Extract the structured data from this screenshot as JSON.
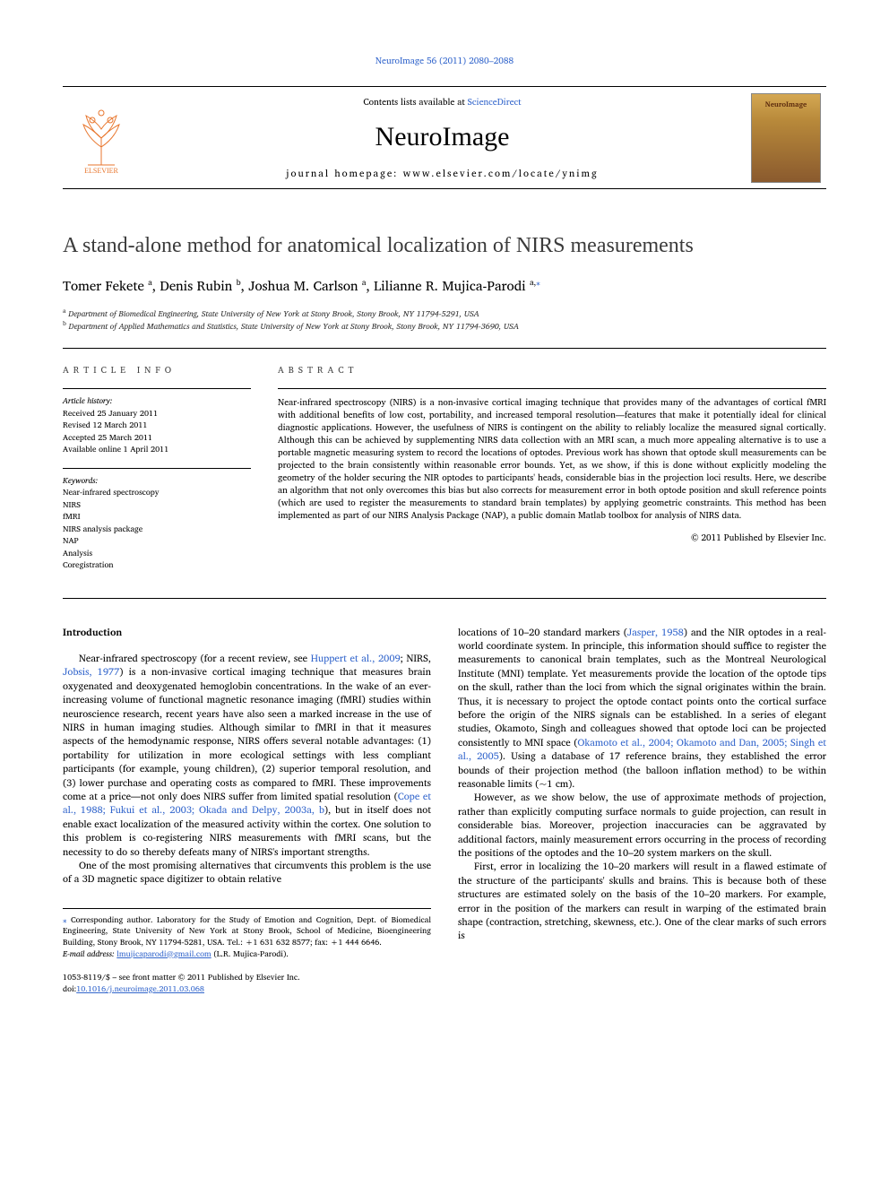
{
  "top_citation": "NeuroImage 56 (2011) 2080–2088",
  "masthead": {
    "contents_prefix": "Contents lists available at ",
    "contents_link": "ScienceDirect",
    "journal_title": "NeuroImage",
    "homepage": "journal homepage: www.elsevier.com/locate/ynimg",
    "cover_label": "NeuroImage"
  },
  "article": {
    "title": "A stand-alone method for anatomical localization of NIRS measurements",
    "authors_html": "Tomer Fekete <span class='sup'>a</span>, Denis Rubin <span class='sup'>b</span>, Joshua M. Carlson <span class='sup'>a</span>, Lilianne R. Mujica-Parodi <span class='sup'>a,</span><span class='sup star'>⁎</span>",
    "affiliations": [
      {
        "label": "a",
        "text": "Department of Biomedical Engineering, State University of New York at Stony Brook, Stony Brook, NY 11794-5291, USA"
      },
      {
        "label": "b",
        "text": "Department of Applied Mathematics and Statistics, State University of New York at Stony Brook, Stony Brook, NY 11794-3690, USA"
      }
    ]
  },
  "info": {
    "heading": "article info",
    "history_label": "Article history:",
    "history": [
      "Received 25 January 2011",
      "Revised 12 March 2011",
      "Accepted 25 March 2011",
      "Available online 1 April 2011"
    ],
    "keywords_label": "Keywords:",
    "keywords": [
      "Near-infrared spectroscopy",
      "NIRS",
      "fMRI",
      "NIRS analysis package",
      "NAP",
      "Analysis",
      "Coregistration"
    ]
  },
  "abstract": {
    "heading": "abstract",
    "text": "Near-infrared spectroscopy (NIRS) is a non-invasive cortical imaging technique that provides many of the advantages of cortical fMRI with additional benefits of low cost, portability, and increased temporal resolution—features that make it potentially ideal for clinical diagnostic applications. However, the usefulness of NIRS is contingent on the ability to reliably localize the measured signal cortically. Although this can be achieved by supplementing NIRS data collection with an MRI scan, a much more appealing alternative is to use a portable magnetic measuring system to record the locations of optodes. Previous work has shown that optode skull measurements can be projected to the brain consistently within reasonable error bounds. Yet, as we show, if this is done without explicitly modeling the geometry of the holder securing the NIR optodes to participants' heads, considerable bias in the projection loci results. Here, we describe an algorithm that not only overcomes this bias but also corrects for measurement error in both optode position and skull reference points (which are used to register the measurements to standard brain templates) by applying geometric constraints. This method has been implemented as part of our NIRS Analysis Package (NAP), a public domain Matlab toolbox for analysis of NIRS data.",
    "copyright": "© 2011 Published by Elsevier Inc."
  },
  "body": {
    "section_heading": "Introduction",
    "left_paragraphs": [
      "Near-infrared spectroscopy (for a recent review, see <span class='cite'>Huppert et al., 2009</span>; NIRS, <span class='cite'>Jobsis, 1977</span>) is a non-invasive cortical imaging technique that measures brain oxygenated and deoxygenated hemoglobin concentrations. In the wake of an ever-increasing volume of functional magnetic resonance imaging (fMRI) studies within neuroscience research, recent years have also seen a marked increase in the use of NIRS in human imaging studies. Although similar to fMRI in that it measures aspects of the hemodynamic response, NIRS offers several notable advantages: (1) portability for utilization in more ecological settings with less compliant participants (for example, young children), (2) superior temporal resolution, and (3) lower purchase and operating costs as compared to fMRI. These improvements come at a price—not only does NIRS suffer from limited spatial resolution (<span class='cite'>Cope et al., 1988; Fukui et al., 2003; Okada and Delpy, 2003a, b</span>), but in itself does not enable exact localization of the measured activity within the cortex. One solution to this problem is co-registering NIRS measurements with fMRI scans, but the necessity to do so thereby defeats many of NIRS's important strengths.",
      "One of the most promising alternatives that circumvents this problem is the use of a 3D magnetic space digitizer to obtain relative"
    ],
    "right_paragraphs": [
      "locations of 10–20 standard markers (<span class='cite'>Jasper, 1958</span>) and the NIR optodes in a real-world coordinate system. In principle, this information should suffice to register the measurements to canonical brain templates, such as the Montreal Neurological Institute (MNI) template. Yet measurements provide the location of the optode tips on the skull, rather than the loci from which the signal originates within the brain. Thus, it is necessary to project the optode contact points onto the cortical surface before the origin of the NIRS signals can be established. In a series of elegant studies, Okamoto, Singh and colleagues showed that optode loci can be projected consistently to MNI space (<span class='cite'>Okamoto et al., 2004; Okamoto and Dan, 2005; Singh et al., 2005</span>). Using a database of 17 reference brains, they established the error bounds of their projection method (the balloon inflation method) to be within reasonable limits (~1 cm).",
      "However, as we show below, the use of approximate methods of projection, rather than explicitly computing surface normals to guide projection, can result in considerable bias. Moreover, projection inaccuracies can be aggravated by additional factors, mainly measurement errors occurring in the process of recording the positions of the optodes and the 10–20 system markers on the skull.",
      "First, error in localizing the 10–20 markers will result in a flawed estimate of the structure of the participants' skulls and brains. This is because both of these structures are estimated solely on the basis of the 10–20 markers. For example, error in the position of the markers can result in warping of the estimated brain shape (contraction, stretching, skewness, etc.). One of the clear marks of such errors is"
    ]
  },
  "footnotes": {
    "corr": "Corresponding author. Laboratory for the Study of Emotion and Cognition, Dept. of Biomedical Engineering, State University of New York at Stony Brook, School of Medicine, Bioengineering Building, Stony Brook, NY 11794-5281, USA. Tel.: +1 631 632 8577; fax: +1 444 6646.",
    "email_label": "E-mail address:",
    "email": "lmujicaparodi@gmail.com",
    "email_suffix": "(L.R. Mujica-Parodi)."
  },
  "bottom": {
    "front_matter": "1053-8119/$ – see front matter © 2011 Published by Elsevier Inc.",
    "doi_prefix": "doi:",
    "doi": "10.1016/j.neuroimage.2011.03.068"
  },
  "colors": {
    "link": "#3366cc",
    "text": "#000000",
    "elsevier_orange": "#e8762d"
  }
}
